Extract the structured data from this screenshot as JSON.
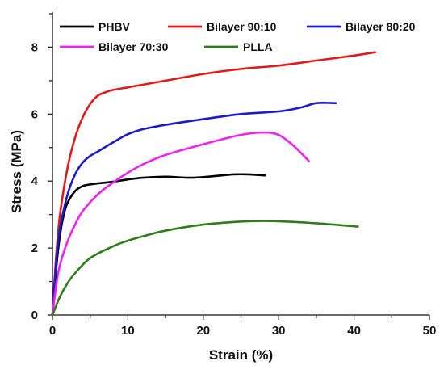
{
  "chart_data": {
    "type": "line",
    "title": "",
    "xlabel": "Strain (%)",
    "ylabel": "Stress (MPa)",
    "xlim": [
      0,
      50
    ],
    "ylim": [
      0,
      9
    ],
    "xticks": [
      0,
      10,
      20,
      30,
      40,
      50
    ],
    "yticks": [
      0,
      2,
      4,
      6,
      8
    ],
    "x_tick_labels": [
      "0",
      "10",
      "20",
      "30",
      "40",
      "50"
    ],
    "y_tick_labels": [
      "0",
      "2",
      "4",
      "6",
      "8"
    ],
    "grid": false,
    "legend_position": "top",
    "series": [
      {
        "name": "PHBV",
        "color": "#000000",
        "x": [
          0,
          0.5,
          1,
          1.5,
          2,
          3,
          4,
          5,
          6,
          8,
          10,
          12,
          15,
          18,
          20,
          22,
          24,
          26,
          28.2
        ],
        "y": [
          0,
          1.4,
          2.4,
          3.0,
          3.35,
          3.7,
          3.85,
          3.9,
          3.93,
          3.98,
          4.05,
          4.1,
          4.13,
          4.1,
          4.12,
          4.16,
          4.2,
          4.2,
          4.17
        ]
      },
      {
        "name": "Bilayer 90:10",
        "color": "#e31a1a",
        "x": [
          0,
          0.5,
          1,
          2,
          3,
          4,
          5,
          6,
          7,
          8,
          10,
          12,
          15,
          20,
          25,
          30,
          35,
          40,
          42.8
        ],
        "y": [
          0,
          1.8,
          3.0,
          4.4,
          5.3,
          5.9,
          6.3,
          6.55,
          6.65,
          6.72,
          6.8,
          6.88,
          7.0,
          7.2,
          7.35,
          7.45,
          7.6,
          7.75,
          7.85
        ]
      },
      {
        "name": "Bilayer 80:20",
        "color": "#1a1acc",
        "x": [
          0,
          0.5,
          1,
          2,
          3,
          4,
          5,
          6,
          8,
          10,
          12,
          15,
          20,
          25,
          30,
          33,
          35,
          37.6
        ],
        "y": [
          0,
          1.6,
          2.6,
          3.6,
          4.2,
          4.55,
          4.75,
          4.88,
          5.15,
          5.4,
          5.55,
          5.68,
          5.85,
          6.0,
          6.08,
          6.2,
          6.33,
          6.33
        ]
      },
      {
        "name": "Bilayer 70:30",
        "color": "#ee22ee",
        "x": [
          0,
          0.5,
          1,
          2,
          3,
          4,
          6,
          8,
          10,
          12,
          15,
          20,
          25,
          28,
          30,
          32,
          34
        ],
        "y": [
          0,
          0.9,
          1.5,
          2.2,
          2.7,
          3.1,
          3.6,
          3.95,
          4.25,
          4.5,
          4.78,
          5.1,
          5.38,
          5.45,
          5.38,
          5.05,
          4.6
        ]
      },
      {
        "name": "PLLA",
        "color": "#2e7d1a",
        "x": [
          0,
          1,
          2,
          3,
          5,
          8,
          10,
          12,
          15,
          20,
          25,
          28,
          30,
          35,
          40.5
        ],
        "y": [
          0,
          0.55,
          0.95,
          1.25,
          1.7,
          2.05,
          2.22,
          2.35,
          2.52,
          2.7,
          2.79,
          2.81,
          2.8,
          2.74,
          2.64
        ]
      }
    ]
  }
}
